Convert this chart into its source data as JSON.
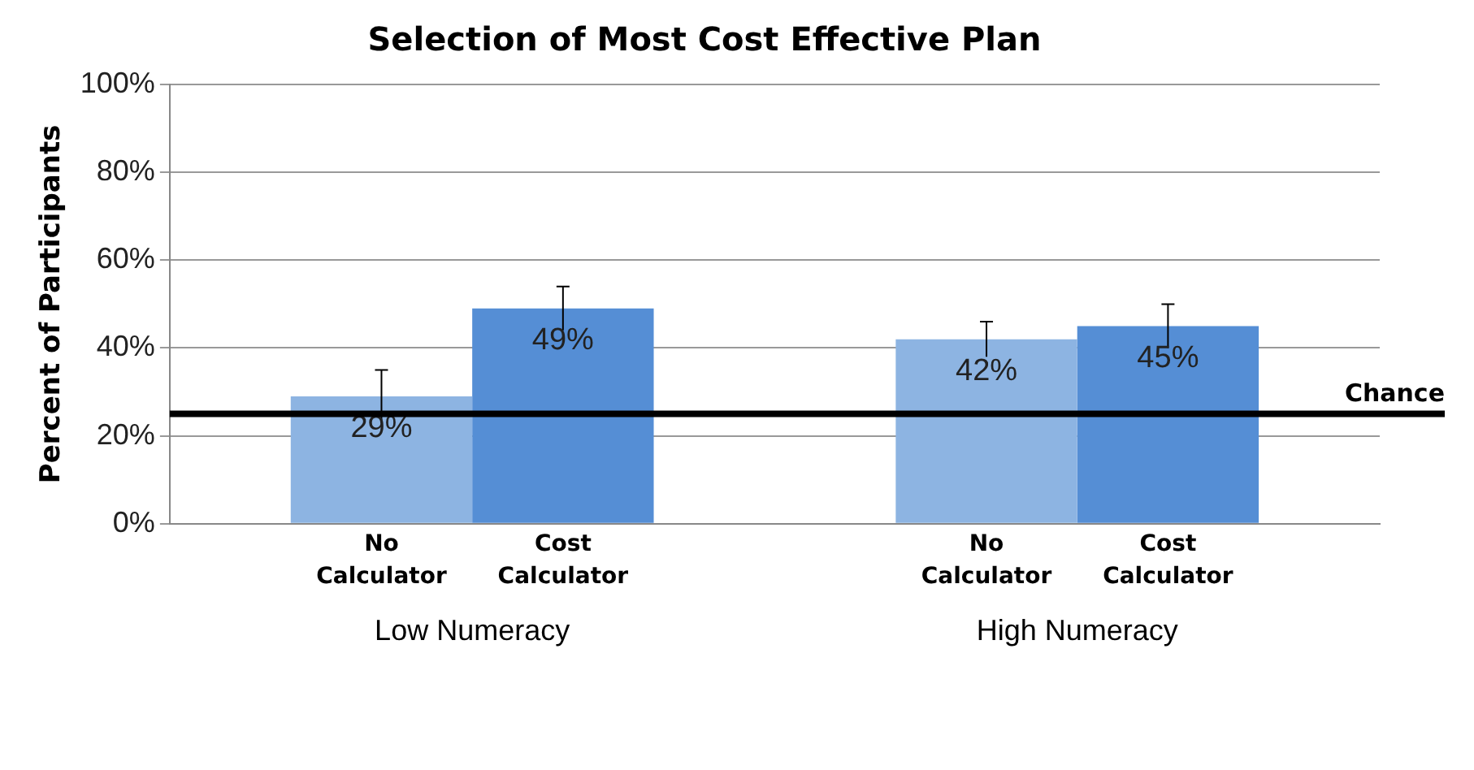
{
  "chart_data": {
    "type": "bar",
    "title": "Selection of Most Cost Effective Plan",
    "ylabel": "Percent of Participants",
    "categories": [
      "Low Numeracy",
      "High Numeracy"
    ],
    "series": [
      {
        "name": "No Calculator",
        "color": "#8db4e2",
        "values": [
          29,
          42
        ],
        "errors": [
          6,
          4
        ],
        "value_labels": [
          "29%",
          "42%"
        ]
      },
      {
        "name": "Cost Calculator",
        "color": "#558ed5",
        "values": [
          49,
          45
        ],
        "errors": [
          5,
          5
        ],
        "value_labels": [
          "49%",
          "45%"
        ]
      }
    ],
    "ylim": [
      0,
      100
    ],
    "yticks": [
      {
        "value": 0,
        "label": "0%"
      },
      {
        "value": 20,
        "label": "20%"
      },
      {
        "value": 40,
        "label": "40%"
      },
      {
        "value": 60,
        "label": "60%"
      },
      {
        "value": 80,
        "label": "80%"
      },
      {
        "value": 100,
        "label": "100%"
      }
    ],
    "ref_lines": [
      {
        "axis": "y",
        "value": 25,
        "label": "Chance",
        "color": "#000000"
      }
    ],
    "grid": "y",
    "legend": false
  }
}
